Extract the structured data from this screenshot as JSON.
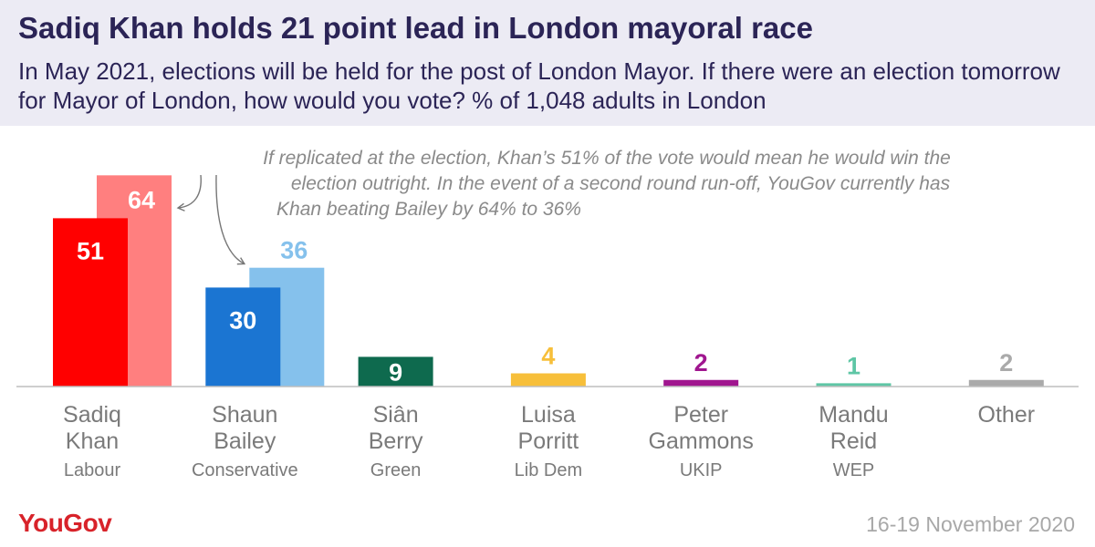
{
  "header": {
    "title": "Sadiq Khan holds 21 point lead in London mayoral race",
    "subtitle": "In May 2021, elections will be held for the post of London Mayor. If there were an election tomorrow for Mayor of London, how would you vote? % of 1,048 adults in London"
  },
  "annotation": [
    "If replicated at the election, Khan’s 51% of the vote would mean he would win the",
    "election outright. In the event of a second round run-off, YouGov currently has",
    "Khan beating Bailey by 64% to 36%"
  ],
  "footer": {
    "brand": "YouGov",
    "date": "16-19 November 2020"
  },
  "chart_data": {
    "type": "bar",
    "ylim": [
      0,
      70
    ],
    "grid": false,
    "categories": [
      {
        "name": [
          "Sadiq",
          "Khan"
        ],
        "party": "Labour",
        "value": 51,
        "color": "#ff0000",
        "labelColor": "#ffffff",
        "runoff": {
          "value": 64,
          "color": "#ff7f7f",
          "labelColor": "#ffffff"
        }
      },
      {
        "name": [
          "Shaun",
          "Bailey"
        ],
        "party": "Conservative",
        "value": 30,
        "color": "#1b75d2",
        "labelColor": "#ffffff",
        "runoff": {
          "value": 36,
          "color": "#85c1ec",
          "labelColor": "#85c1ec"
        }
      },
      {
        "name": [
          "Siân",
          "Berry"
        ],
        "party": "Green",
        "value": 9,
        "color": "#0e6a4e",
        "labelColor": "#ffffff"
      },
      {
        "name": [
          "Luisa",
          "Porritt"
        ],
        "party": "Lib Dem",
        "value": 4,
        "color": "#f7bf3a",
        "labelColor": "#f7bf3a"
      },
      {
        "name": [
          "Peter",
          "Gammons"
        ],
        "party": "UKIP",
        "value": 2,
        "color": "#a0168f",
        "labelColor": "#a0168f"
      },
      {
        "name": [
          "Mandu",
          "Reid"
        ],
        "party": "WEP",
        "value": 1,
        "color": "#5ec6a5",
        "labelColor": "#5ec6a5"
      },
      {
        "name": [
          "Other"
        ],
        "party": "",
        "value": 2,
        "color": "#aaaaaa",
        "labelColor": "#aaaaaa"
      }
    ]
  }
}
